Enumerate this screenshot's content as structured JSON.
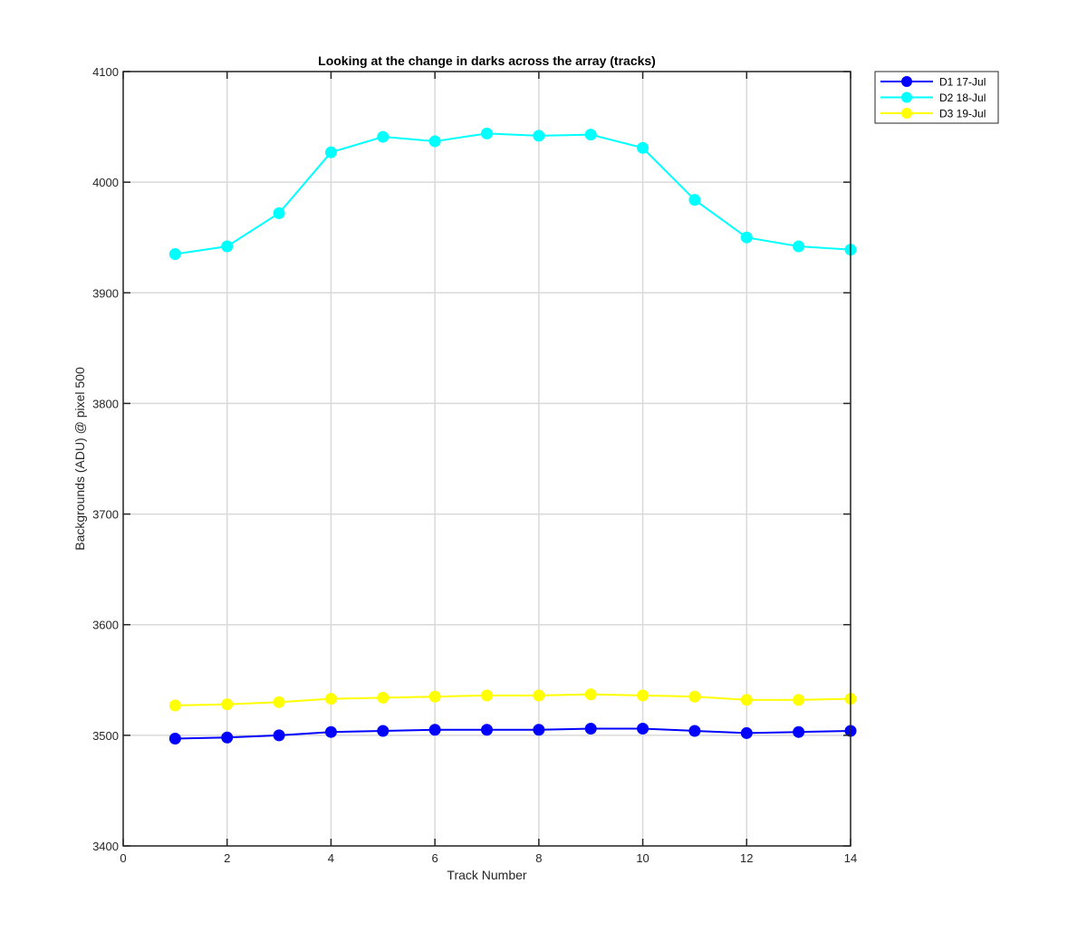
{
  "chart_data": {
    "type": "line",
    "title": "Looking at the change in darks across the array (tracks)",
    "xlabel": "Track Number",
    "ylabel": "Backgrounds (ADU) @ pixel 500",
    "xlim": [
      0,
      14
    ],
    "ylim": [
      3400,
      4100
    ],
    "xticks": [
      0,
      2,
      4,
      6,
      8,
      10,
      12,
      14
    ],
    "yticks": [
      3400,
      3500,
      3600,
      3700,
      3800,
      3900,
      4000,
      4100
    ],
    "grid": true,
    "legend_position": "outside-top-right",
    "x": [
      1,
      2,
      3,
      4,
      5,
      6,
      7,
      8,
      9,
      10,
      11,
      12,
      13,
      14
    ],
    "series": [
      {
        "name": "D1 17-Jul",
        "color": "#0000ff",
        "marker": "circle",
        "values": [
          3497,
          3498,
          3500,
          3503,
          3504,
          3505,
          3505,
          3505,
          3506,
          3506,
          3504,
          3502,
          3503,
          3504
        ]
      },
      {
        "name": "D2 18-Jul",
        "color": "#00ffff",
        "marker": "circle",
        "values": [
          3935,
          3942,
          3972,
          4027,
          4041,
          4037,
          4044,
          4042,
          4043,
          4031,
          3984,
          3950,
          3942,
          3939
        ]
      },
      {
        "name": "D3 19-Jul",
        "color": "#ffff00",
        "marker": "circle",
        "values": [
          3527,
          3528,
          3530,
          3533,
          3534,
          3535,
          3536,
          3536,
          3537,
          3536,
          3535,
          3532,
          3532,
          3533
        ]
      }
    ]
  }
}
